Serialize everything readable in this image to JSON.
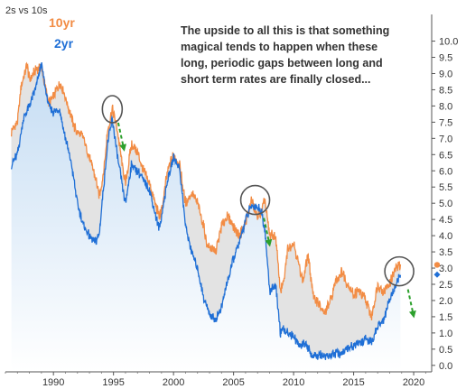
{
  "chart_data": {
    "type": "line",
    "title": "2s vs 10s",
    "annotation": [
      "The upside to all this is that something",
      "magical tends to happen when these",
      "long, periodic gaps between long and",
      "short term rates are finally closed..."
    ],
    "x_ticks": [
      "1990",
      "1995",
      "2000",
      "2005",
      "2010",
      "2015",
      "2020"
    ],
    "y_ticks": [
      "0.0",
      "0.5",
      "1.0",
      "1.5",
      "2.0",
      "2.5",
      "3.0",
      "3.5",
      "4.0",
      "4.5",
      "5.0",
      "5.5",
      "6.0",
      "6.5",
      "7.0",
      "7.5",
      "8.0",
      "8.5",
      "9.0",
      "9.5",
      "10.0"
    ],
    "xlim": [
      1986,
      2021.5
    ],
    "ylim": [
      -0.2,
      10.6
    ],
    "grid": false,
    "legend_placement": "top-left",
    "colors": {
      "10yr": "#f28c44",
      "2yr": "#1f6fd6",
      "gap_fill": "#e3e3e3",
      "area_fill_top": "#c4dcf3",
      "circle": "#555555",
      "arrow": "#2ca02c"
    },
    "series": [
      {
        "name": "10yr",
        "x": [
          1986.5,
          1987.0,
          1987.3,
          1987.8,
          1988.0,
          1988.5,
          1989.0,
          1989.3,
          1989.6,
          1990.0,
          1990.5,
          1990.8,
          1991.2,
          1991.8,
          1992.0,
          1992.5,
          1993.0,
          1993.5,
          1993.8,
          1994.2,
          1994.5,
          1994.9,
          1995.3,
          1995.8,
          1996.0,
          1996.5,
          1997.0,
          1997.5,
          1998.0,
          1998.8,
          1999.0,
          1999.5,
          2000.0,
          2000.5,
          2001.0,
          2001.5,
          2002.0,
          2002.5,
          2002.8,
          2003.5,
          2004.0,
          2004.5,
          2005.0,
          2005.5,
          2006.0,
          2006.5,
          2006.9,
          2007.3,
          2007.6,
          2008.0,
          2008.5,
          2008.9,
          2009.2,
          2009.5,
          2010.0,
          2010.5,
          2010.8,
          2011.2,
          2011.7,
          2012.0,
          2012.5,
          2013.0,
          2013.5,
          2014.0,
          2014.5,
          2015.0,
          2015.5,
          2016.0,
          2016.5,
          2017.0,
          2017.5,
          2018.0,
          2018.5,
          2018.9
        ],
        "values": [
          7.2,
          7.5,
          8.6,
          9.3,
          8.8,
          9.1,
          9.2,
          8.6,
          8.1,
          8.3,
          8.7,
          8.5,
          8.0,
          7.3,
          7.2,
          7.0,
          6.4,
          5.8,
          5.2,
          6.0,
          7.2,
          7.9,
          7.3,
          6.0,
          5.6,
          6.8,
          6.6,
          6.0,
          5.6,
          4.6,
          4.7,
          6.0,
          6.5,
          6.2,
          5.0,
          5.3,
          5.0,
          4.3,
          3.7,
          3.5,
          4.3,
          4.6,
          4.3,
          4.0,
          4.4,
          5.1,
          4.6,
          4.7,
          5.1,
          4.0,
          4.0,
          2.3,
          2.6,
          3.6,
          3.8,
          3.0,
          2.6,
          3.4,
          2.0,
          2.0,
          1.6,
          1.9,
          2.6,
          2.9,
          2.5,
          2.2,
          2.3,
          2.0,
          1.5,
          2.5,
          2.3,
          2.5,
          3.0,
          3.1
        ]
      },
      {
        "name": "2yr",
        "x": [
          1986.5,
          1987.0,
          1987.5,
          1988.0,
          1988.5,
          1989.0,
          1989.3,
          1989.6,
          1990.0,
          1990.5,
          1991.0,
          1991.5,
          1992.0,
          1992.5,
          1993.0,
          1993.5,
          1993.8,
          1994.2,
          1994.5,
          1994.9,
          1995.3,
          1995.8,
          1996.0,
          1996.5,
          1997.0,
          1997.5,
          1998.0,
          1998.8,
          1999.0,
          1999.5,
          2000.0,
          2000.5,
          2001.0,
          2001.5,
          2002.0,
          2002.5,
          2003.0,
          2003.5,
          2004.0,
          2004.5,
          2005.0,
          2005.5,
          2006.0,
          2006.5,
          2006.9,
          2007.3,
          2007.6,
          2008.0,
          2008.5,
          2008.9,
          2009.2,
          2009.5,
          2010.0,
          2010.5,
          2011.0,
          2011.5,
          2012.0,
          2013.0,
          2014.0,
          2015.0,
          2015.5,
          2016.0,
          2016.5,
          2017.0,
          2017.5,
          2018.0,
          2018.5,
          2018.9
        ],
        "values": [
          6.2,
          6.5,
          7.6,
          8.0,
          8.5,
          9.3,
          8.6,
          8.0,
          7.8,
          7.9,
          7.0,
          6.2,
          5.0,
          4.3,
          4.0,
          3.8,
          4.0,
          5.6,
          6.8,
          7.6,
          6.5,
          5.4,
          5.0,
          6.2,
          6.0,
          5.7,
          5.4,
          4.2,
          4.6,
          5.7,
          6.4,
          6.1,
          4.3,
          3.5,
          3.0,
          2.1,
          1.6,
          1.4,
          1.8,
          2.6,
          3.3,
          3.8,
          4.5,
          4.9,
          4.9,
          4.8,
          4.2,
          2.3,
          2.5,
          1.0,
          1.1,
          1.0,
          0.9,
          0.6,
          0.7,
          0.3,
          0.3,
          0.3,
          0.4,
          0.6,
          0.7,
          0.8,
          0.7,
          1.2,
          1.4,
          2.0,
          2.5,
          2.8
        ]
      }
    ],
    "highlights": [
      {
        "x": 1994.9,
        "y": 7.9
      },
      {
        "x": 2006.8,
        "y": 5.1
      },
      {
        "x": 2018.8,
        "y": 2.9
      }
    ]
  }
}
